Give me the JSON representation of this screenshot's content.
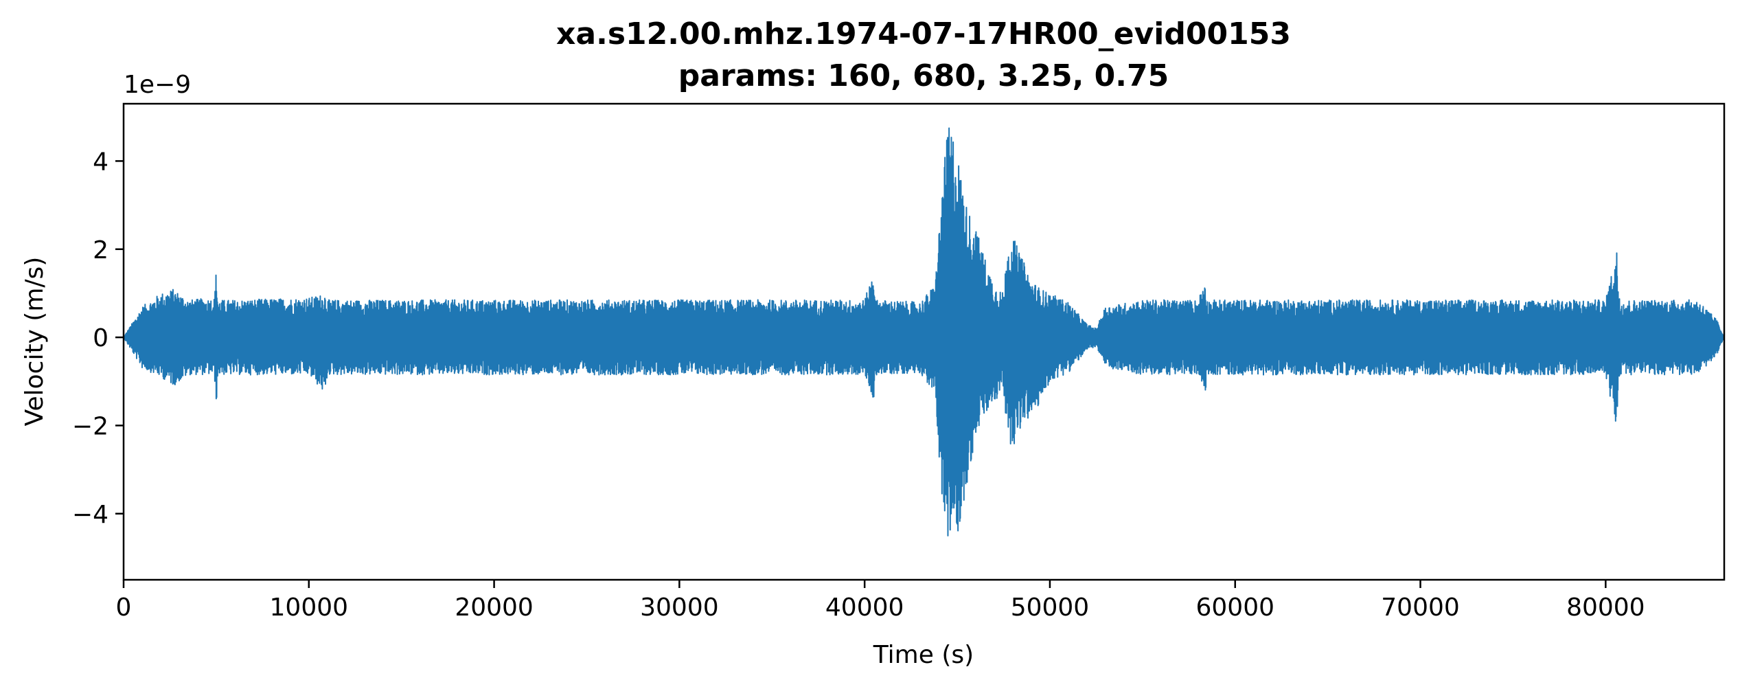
{
  "chart_data": {
    "type": "line",
    "title": "xa.s12.00.mhz.1974-07-17HR00_evid00153",
    "subtitle": "params: 160, 680, 3.25, 0.75",
    "xlabel": "Time (s)",
    "ylabel": "Velocity (m/s)",
    "y_offset_label": "1e−9",
    "xlim": [
      0,
      86400
    ],
    "ylim": [
      -5.5,
      5.3
    ],
    "x_ticks": [
      0,
      10000,
      20000,
      30000,
      40000,
      50000,
      60000,
      70000,
      80000
    ],
    "x_tick_labels": [
      "0",
      "10000",
      "20000",
      "30000",
      "40000",
      "50000",
      "60000",
      "70000",
      "80000"
    ],
    "y_ticks": [
      -4,
      -2,
      0,
      2,
      4
    ],
    "y_tick_labels": [
      "−4",
      "−2",
      "0",
      "2",
      "4"
    ],
    "grid": false,
    "series_color": "#1f77b4",
    "envelope": {
      "time": [
        0,
        1000,
        2000,
        2700,
        3500,
        4900,
        5000,
        5100,
        6000,
        10000,
        10900,
        11000,
        11100,
        15000,
        20000,
        25000,
        30000,
        35000,
        40000,
        40500,
        40600,
        40700,
        43000,
        43800,
        44200,
        44500,
        44700,
        45000,
        45500,
        46000,
        46500,
        47000,
        47500,
        47700,
        48000,
        48500,
        49000,
        49500,
        50000,
        51000,
        52000,
        52500,
        53000,
        55000,
        58000,
        58400,
        58500,
        60000,
        65000,
        70000,
        75000,
        80000,
        80600,
        80700,
        80800,
        82000,
        85000,
        86000,
        86400
      ],
      "upper": [
        0,
        0.7,
        1.0,
        1.1,
        0.85,
        0.9,
        1.55,
        0.85,
        0.85,
        0.9,
        1.0,
        0.85,
        0.85,
        0.85,
        0.85,
        0.85,
        0.85,
        0.85,
        0.85,
        1.55,
        0.85,
        0.85,
        0.8,
        1.2,
        3.5,
        4.8,
        4.8,
        4.2,
        3.0,
        2.5,
        1.8,
        1.2,
        1.0,
        2.1,
        2.3,
        1.8,
        1.3,
        1.1,
        1.0,
        0.8,
        0.3,
        0.2,
        0.7,
        0.85,
        0.85,
        1.4,
        0.85,
        0.85,
        0.85,
        0.85,
        0.85,
        0.85,
        2.0,
        1.2,
        0.85,
        0.85,
        0.85,
        0.4,
        0
      ],
      "lower": [
        0,
        -0.7,
        -0.9,
        -1.1,
        -0.85,
        -0.85,
        -1.55,
        -0.85,
        -0.85,
        -0.85,
        -1.3,
        -0.85,
        -0.85,
        -0.85,
        -0.85,
        -0.85,
        -0.85,
        -0.85,
        -0.85,
        -1.45,
        -0.85,
        -0.85,
        -0.8,
        -1.3,
        -3.8,
        -5.0,
        -4.4,
        -4.5,
        -3.5,
        -2.2,
        -1.8,
        -1.5,
        -1.2,
        -2.3,
        -2.5,
        -2.0,
        -1.8,
        -1.5,
        -1.0,
        -0.8,
        -0.3,
        -0.2,
        -0.7,
        -0.85,
        -0.85,
        -1.2,
        -0.85,
        -0.85,
        -0.85,
        -0.85,
        -0.85,
        -0.85,
        -2.1,
        -1.2,
        -0.85,
        -0.85,
        -0.85,
        -0.4,
        0
      ]
    }
  }
}
